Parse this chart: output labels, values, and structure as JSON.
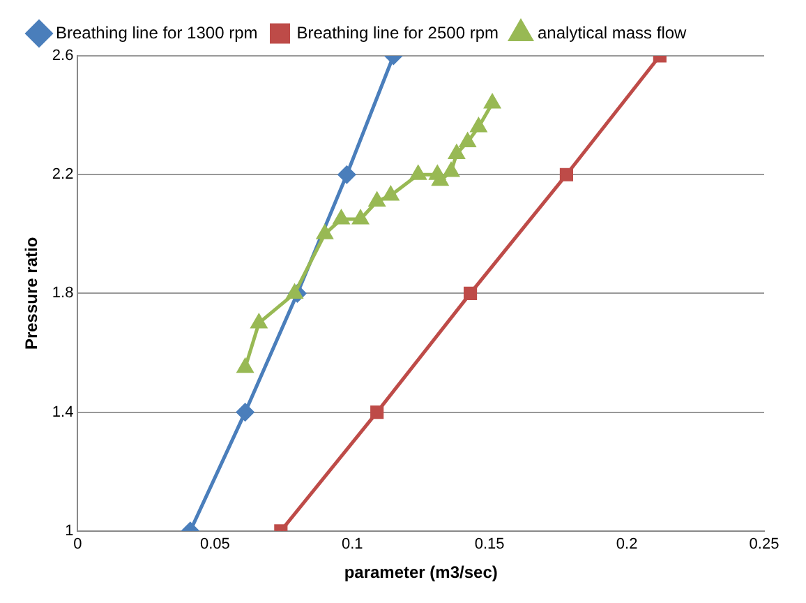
{
  "chart_data": {
    "type": "line",
    "xlabel": "parameter (m3/sec)",
    "ylabel": "Pressure ratio",
    "xlim": [
      0,
      0.25
    ],
    "xticks": [
      0,
      0.05,
      0.1,
      0.15,
      0.2,
      0.25
    ],
    "ylim": [
      1,
      2.6
    ],
    "yticks": [
      1,
      1.4,
      1.8,
      2.2,
      2.6
    ],
    "grid": "y",
    "legend": "top",
    "series": [
      {
        "name": "Breathing line for 1300 rpm",
        "color": "#4a7ebb",
        "marker": "diamond",
        "x": [
          0.041,
          0.061,
          0.08,
          0.098,
          0.115
        ],
        "values": [
          1,
          1.4,
          1.8,
          2.2,
          2.6
        ]
      },
      {
        "name": "Breathing line for 2500 rpm",
        "color": "#be4b48",
        "marker": "square",
        "x": [
          0.074,
          0.109,
          0.143,
          0.178,
          0.212
        ],
        "values": [
          1,
          1.4,
          1.8,
          2.2,
          2.6
        ]
      },
      {
        "name": "analytical mass flow",
        "color": "#98b954",
        "marker": "triangle",
        "x": [
          0.061,
          0.066,
          0.079,
          0.09,
          0.096,
          0.103,
          0.109,
          0.114,
          0.124,
          0.131,
          0.132,
          0.136,
          0.138,
          0.142,
          0.146,
          0.151
        ],
        "values": [
          1.55,
          1.7,
          1.8,
          2,
          2.05,
          2.05,
          2.11,
          2.13,
          2.2,
          2.2,
          2.18,
          2.21,
          2.27,
          2.31,
          2.36,
          2.44
        ]
      }
    ]
  }
}
